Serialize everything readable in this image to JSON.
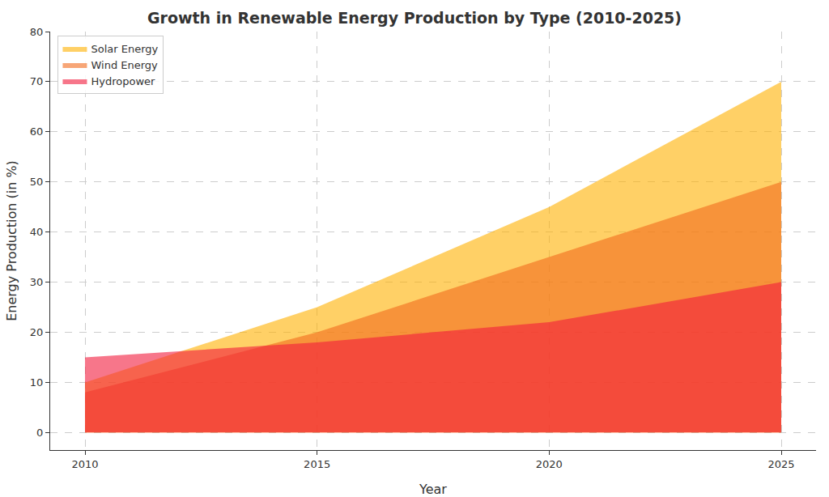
{
  "chart_data": {
    "type": "area",
    "title": "Growth in Renewable Energy Production by Type (2010-2025)",
    "x_label": "Year",
    "y_label": "Energy Production (in %)",
    "x": [
      2010,
      2015,
      2020,
      2025
    ],
    "series": [
      {
        "name": "Solar Energy",
        "color": "#FFB000",
        "values": [
          10,
          25,
          45,
          70
        ]
      },
      {
        "name": "Wind Energy",
        "color": "#F26B1D",
        "values": [
          8,
          20,
          35,
          50
        ]
      },
      {
        "name": "Hydropower",
        "color": "#F21A3C",
        "values": [
          15,
          18,
          22,
          30
        ]
      }
    ],
    "xlim": [
      2009.25,
      2025.75
    ],
    "xticks": [
      2010,
      2015,
      2020,
      2025
    ],
    "ylim": [
      -3.5,
      80
    ],
    "yticks": [
      0,
      10,
      20,
      30,
      40,
      50,
      60,
      70,
      80
    ],
    "stacked": false,
    "grid": true,
    "legend": "upper left"
  }
}
